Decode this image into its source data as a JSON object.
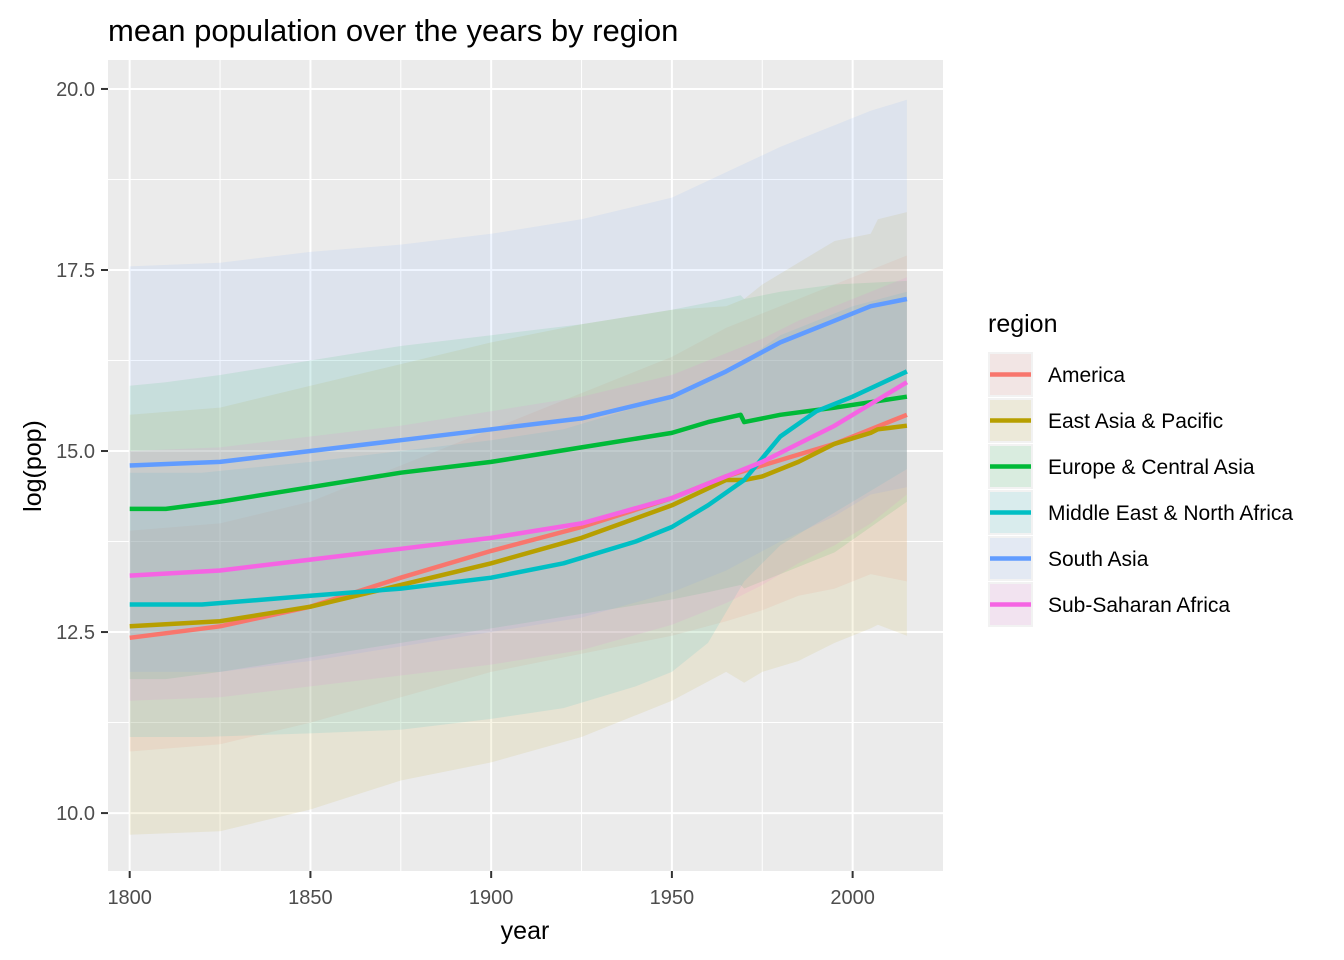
{
  "chart_data": {
    "type": "line",
    "title": "mean population over the years by region",
    "xlabel": "year",
    "ylabel": "log(pop)",
    "xlim": [
      1794,
      2025
    ],
    "ylim": [
      9.2,
      20.4
    ],
    "x_ticks": [
      1800,
      1850,
      1900,
      1950,
      2000
    ],
    "x_tick_labels": [
      "1800",
      "1850",
      "1900",
      "1950",
      "2000"
    ],
    "y_ticks": [
      10.0,
      12.5,
      15.0,
      17.5,
      20.0
    ],
    "y_tick_labels": [
      "10.0",
      "12.5",
      "15.0",
      "17.5",
      "20.0"
    ],
    "grid": true,
    "legend": {
      "title": "region",
      "position": "right"
    },
    "series": [
      {
        "name": "America",
        "color": "#F8766D",
        "x": [
          1800,
          1825,
          1850,
          1875,
          1900,
          1925,
          1950,
          1965,
          1975,
          1985,
          1995,
          2005,
          2015
        ],
        "mean": [
          12.42,
          12.58,
          12.85,
          13.25,
          13.62,
          13.95,
          14.35,
          14.65,
          14.8,
          14.95,
          15.1,
          15.3,
          15.5
        ],
        "upper": [
          13.9,
          14.0,
          14.3,
          14.8,
          15.3,
          15.8,
          16.3,
          16.7,
          16.9,
          17.1,
          17.3,
          17.5,
          17.7
        ],
        "lower": [
          10.85,
          10.95,
          11.25,
          11.6,
          11.95,
          12.2,
          12.45,
          12.65,
          12.8,
          13.0,
          13.1,
          13.3,
          13.2
        ]
      },
      {
        "name": "East Asia & Pacific",
        "color": "#B79F00",
        "x": [
          1800,
          1825,
          1850,
          1875,
          1900,
          1925,
          1950,
          1965,
          1970,
          1975,
          1985,
          1995,
          2005,
          2007,
          2015
        ],
        "mean": [
          12.58,
          12.65,
          12.85,
          13.15,
          13.45,
          13.8,
          14.25,
          14.6,
          14.6,
          14.65,
          14.85,
          15.1,
          15.25,
          15.3,
          15.35
        ],
        "upper": [
          15.5,
          15.6,
          15.9,
          16.2,
          16.5,
          16.75,
          16.95,
          17.0,
          17.1,
          17.3,
          17.6,
          17.9,
          18.0,
          18.2,
          18.3
        ],
        "lower": [
          9.7,
          9.75,
          10.05,
          10.45,
          10.7,
          11.05,
          11.55,
          11.95,
          11.8,
          11.95,
          12.1,
          12.35,
          12.55,
          12.6,
          12.45
        ]
      },
      {
        "name": "Europe & Central Asia",
        "color": "#00BA38",
        "x": [
          1800,
          1810,
          1825,
          1850,
          1875,
          1900,
          1925,
          1950,
          1960,
          1969,
          1970,
          1980,
          1995,
          2015
        ],
        "mean": [
          14.2,
          14.2,
          14.3,
          14.5,
          14.7,
          14.85,
          15.05,
          15.25,
          15.4,
          15.5,
          15.4,
          15.5,
          15.6,
          15.75
        ],
        "upper": [
          15.9,
          15.95,
          16.05,
          16.25,
          16.45,
          16.6,
          16.75,
          16.95,
          17.05,
          17.15,
          17.1,
          17.2,
          17.3,
          17.35
        ],
        "lower": [
          11.85,
          11.85,
          11.95,
          12.15,
          12.35,
          12.55,
          12.75,
          12.95,
          13.05,
          13.15,
          13.1,
          13.3,
          13.6,
          14.3
        ]
      },
      {
        "name": "Middle East & North Africa",
        "color": "#00BFC4",
        "x": [
          1800,
          1820,
          1850,
          1875,
          1900,
          1920,
          1940,
          1950,
          1960,
          1970,
          1980,
          1990,
          2000,
          2015
        ],
        "mean": [
          12.88,
          12.88,
          13.0,
          13.1,
          13.25,
          13.45,
          13.75,
          13.95,
          14.25,
          14.6,
          15.2,
          15.55,
          15.75,
          16.1
        ],
        "upper": [
          14.7,
          14.7,
          14.85,
          15.0,
          15.15,
          15.3,
          15.6,
          15.75,
          15.95,
          16.25,
          16.6,
          16.8,
          17.0,
          17.2
        ],
        "lower": [
          11.05,
          11.05,
          11.1,
          11.15,
          11.3,
          11.45,
          11.75,
          11.95,
          12.35,
          13.2,
          13.7,
          14.0,
          14.3,
          14.75
        ]
      },
      {
        "name": "South Asia",
        "color": "#619CFF",
        "x": [
          1800,
          1825,
          1850,
          1875,
          1900,
          1925,
          1950,
          1965,
          1980,
          1995,
          2005,
          2015
        ],
        "mean": [
          14.8,
          14.85,
          15.0,
          15.15,
          15.3,
          15.45,
          15.75,
          16.1,
          16.5,
          16.8,
          17.0,
          17.1
        ],
        "upper": [
          17.55,
          17.6,
          17.75,
          17.85,
          18.0,
          18.2,
          18.5,
          18.85,
          19.2,
          19.5,
          19.7,
          19.85
        ],
        "lower": [
          11.95,
          11.95,
          12.1,
          12.3,
          12.5,
          12.7,
          13.05,
          13.35,
          13.75,
          14.1,
          14.4,
          14.5
        ]
      },
      {
        "name": "Sub-Saharan Africa",
        "color": "#F564E3",
        "x": [
          1800,
          1825,
          1850,
          1875,
          1900,
          1925,
          1950,
          1965,
          1975,
          1985,
          1995,
          2005,
          2015
        ],
        "mean": [
          13.28,
          13.35,
          13.5,
          13.65,
          13.8,
          14.0,
          14.35,
          14.65,
          14.85,
          15.1,
          15.35,
          15.65,
          15.95
        ],
        "upper": [
          15.0,
          15.05,
          15.2,
          15.35,
          15.55,
          15.75,
          16.05,
          16.35,
          16.55,
          16.8,
          17.0,
          17.2,
          17.4
        ],
        "lower": [
          11.55,
          11.6,
          11.75,
          11.9,
          12.05,
          12.25,
          12.6,
          12.9,
          13.15,
          13.45,
          13.7,
          14.0,
          14.4
        ]
      }
    ]
  }
}
